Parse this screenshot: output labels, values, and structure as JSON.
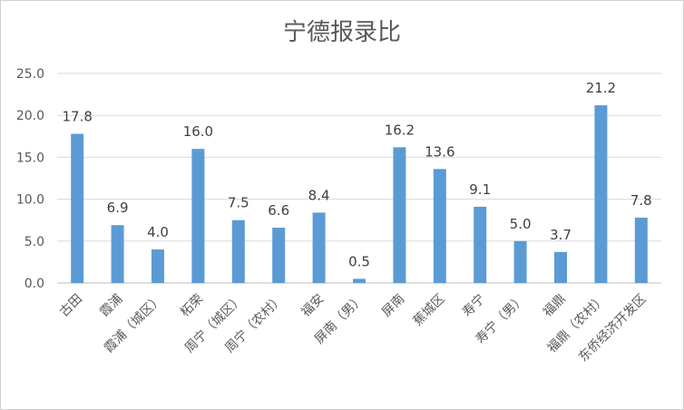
{
  "chart_data": {
    "type": "bar",
    "title": "宁德报录比",
    "xlabel": "",
    "ylabel": "",
    "ylim": [
      0,
      25
    ],
    "yticks": [
      "0.0",
      "5.0",
      "10.0",
      "15.0",
      "20.0",
      "25.0"
    ],
    "grid": true,
    "legend": "none",
    "bar_color": "#5b9bd5",
    "categories": [
      "古田",
      "霞浦",
      "霞浦（城区）",
      "柘荣",
      "周宁（城区）",
      "周宁（农村）",
      "福安",
      "屏南（男）",
      "屏南",
      "蕉城区",
      "寿宁",
      "寿宁（男）",
      "福鼎",
      "福鼎（农村）",
      "东侨经济开发区"
    ],
    "values": [
      17.8,
      6.9,
      4.0,
      16.0,
      7.5,
      6.6,
      8.4,
      0.5,
      16.2,
      13.6,
      9.1,
      5.0,
      3.7,
      21.2,
      7.8
    ],
    "data_labels": [
      "17.8",
      "6.9",
      "4.0",
      "16.0",
      "7.5",
      "6.6",
      "8.4",
      "0.5",
      "16.2",
      "13.6",
      "9.1",
      "5.0",
      "3.7",
      "21.2",
      "7.8"
    ]
  }
}
